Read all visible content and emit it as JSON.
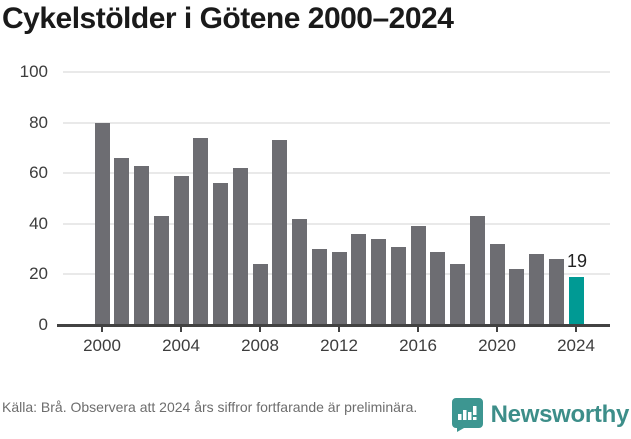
{
  "title": "Cykelstölder i Götene 2000–2024",
  "chart_data": {
    "type": "bar",
    "title": "Cykelstölder i Götene 2000–2024",
    "categories": [
      2000,
      2001,
      2002,
      2003,
      2004,
      2005,
      2006,
      2007,
      2008,
      2009,
      2010,
      2011,
      2012,
      2013,
      2014,
      2015,
      2016,
      2017,
      2018,
      2019,
      2020,
      2021,
      2022,
      2023,
      2024
    ],
    "values": [
      80,
      66,
      63,
      43,
      59,
      74,
      56,
      62,
      24,
      73,
      42,
      30,
      29,
      36,
      34,
      31,
      39,
      29,
      24,
      43,
      32,
      22,
      28,
      26,
      19
    ],
    "xlabel": "",
    "ylabel": "",
    "ylim": [
      0,
      100
    ],
    "yticks": [
      0,
      20,
      40,
      60,
      80,
      100
    ],
    "xticks": [
      2000,
      2004,
      2008,
      2012,
      2016,
      2020,
      2024
    ],
    "grid": true,
    "legend": false,
    "bar_color": "#6d6d72",
    "highlight_color": "#009a94",
    "highlight_index": 24,
    "highlight_label": "19"
  },
  "footer": {
    "source_text": "Källa: Brå. Observera att 2024 års siffror fortfarande är preliminära.",
    "brand": "Newsworthy",
    "brand_color": "#3d8e89",
    "logo_icon": "bar-chart-speech-bubble-icon"
  }
}
